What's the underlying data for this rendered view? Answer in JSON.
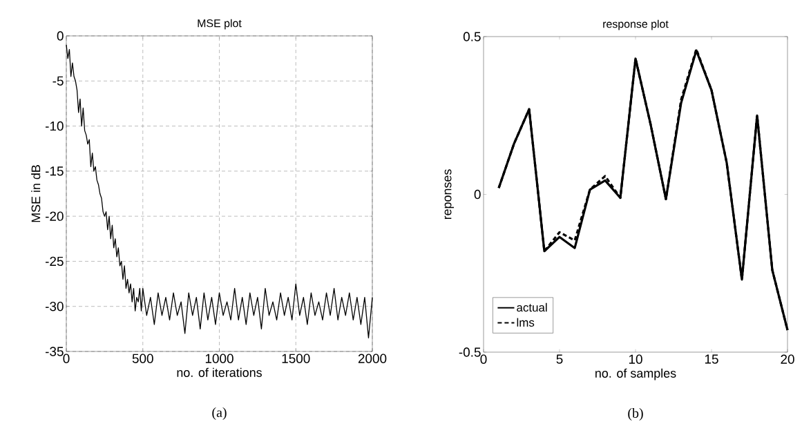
{
  "chart_data": [
    {
      "type": "line",
      "title": "MSE plot",
      "xlabel": "no. of iterations",
      "ylabel": "MSE in dB",
      "xlim": [
        0,
        2000
      ],
      "ylim": [
        -35,
        0
      ],
      "xticks": [
        0,
        500,
        1000,
        1500,
        2000
      ],
      "yticks": [
        -35,
        -30,
        -25,
        -20,
        -15,
        -10,
        -5,
        0
      ],
      "grid": true,
      "annotations": [
        "(a)"
      ],
      "series": [
        {
          "color": "#000000",
          "x": [
            0,
            10,
            20,
            30,
            40,
            50,
            60,
            70,
            80,
            90,
            100,
            110,
            120,
            130,
            140,
            150,
            160,
            170,
            180,
            190,
            200,
            210,
            220,
            230,
            240,
            250,
            260,
            270,
            280,
            290,
            300,
            310,
            320,
            330,
            340,
            350,
            360,
            370,
            380,
            390,
            400,
            410,
            420,
            430,
            440,
            450,
            460,
            470,
            480,
            490,
            500,
            525,
            550,
            575,
            600,
            625,
            650,
            675,
            700,
            725,
            750,
            775,
            800,
            825,
            850,
            875,
            900,
            925,
            950,
            975,
            1000,
            1025,
            1050,
            1075,
            1100,
            1125,
            1150,
            1175,
            1200,
            1225,
            1250,
            1275,
            1300,
            1325,
            1350,
            1375,
            1400,
            1425,
            1450,
            1475,
            1500,
            1525,
            1550,
            1575,
            1600,
            1625,
            1650,
            1675,
            1700,
            1725,
            1750,
            1775,
            1800,
            1825,
            1850,
            1875,
            1900,
            1925,
            1950,
            1975,
            2000
          ],
          "values": [
            -1,
            -2.5,
            -1.5,
            -4.5,
            -3,
            -4.5,
            -5,
            -6,
            -8.5,
            -7,
            -10,
            -8,
            -10.5,
            -11,
            -12,
            -11.5,
            -14.5,
            -13,
            -15,
            -14.5,
            -16,
            -16.5,
            -17.5,
            -18,
            -19.5,
            -20,
            -19.5,
            -21.5,
            -20,
            -22.5,
            -21,
            -23.5,
            -22.5,
            -24.5,
            -23.5,
            -25.5,
            -25,
            -27,
            -25.5,
            -28,
            -27,
            -28.5,
            -27.5,
            -29.5,
            -28,
            -30.5,
            -29,
            -29.5,
            -28,
            -30.5,
            -28,
            -31,
            -29,
            -32,
            -28.5,
            -31,
            -29,
            -31.5,
            -28.5,
            -31,
            -29.5,
            -33,
            -28.5,
            -31,
            -29,
            -32.5,
            -28.5,
            -31.5,
            -29,
            -32,
            -28.5,
            -31,
            -29.5,
            -31.5,
            -28,
            -31.5,
            -29,
            -32,
            -28.5,
            -31,
            -29,
            -32.5,
            -28,
            -31,
            -29.5,
            -31.5,
            -28.5,
            -31,
            -29,
            -31.5,
            -27.5,
            -31,
            -29,
            -32,
            -28.5,
            -31,
            -29.5,
            -31.5,
            -28.5,
            -31,
            -28,
            -31.5,
            -29,
            -31,
            -28.5,
            -31.5,
            -29,
            -32,
            -29,
            -33.5,
            -29
          ]
        }
      ]
    },
    {
      "type": "line",
      "title": "response plot",
      "xlabel": "no. of samples",
      "ylabel": "reponses",
      "xlim": [
        0,
        20
      ],
      "ylim": [
        -0.5,
        0.5
      ],
      "xticks": [
        0,
        5,
        10,
        15,
        20
      ],
      "yticks": [
        -0.5,
        0,
        0.5
      ],
      "legend": "bottom left",
      "annotations": [
        "(b)"
      ],
      "x": [
        1,
        2,
        3,
        4,
        5,
        6,
        7,
        8,
        9,
        10,
        11,
        12,
        13,
        14,
        15,
        16,
        17,
        18,
        19,
        20
      ],
      "series": [
        {
          "name": "actual",
          "color": "#000000",
          "line_style": "solid",
          "values": [
            0.02,
            0.16,
            0.27,
            -0.18,
            -0.135,
            -0.17,
            0.015,
            0.044,
            -0.011,
            0.43,
            0.22,
            -0.015,
            0.29,
            0.456,
            0.33,
            0.1,
            -0.27,
            0.25,
            -0.24,
            -0.43
          ]
        },
        {
          "name": "lms",
          "color": "#000000",
          "line_style": "dashed",
          "values": [
            0.02,
            0.16,
            0.27,
            -0.18,
            -0.12,
            -0.146,
            0.015,
            0.058,
            -0.011,
            0.43,
            0.22,
            -0.015,
            0.3,
            0.46,
            0.33,
            0.1,
            -0.27,
            0.25,
            -0.24,
            -0.43
          ]
        }
      ]
    }
  ]
}
